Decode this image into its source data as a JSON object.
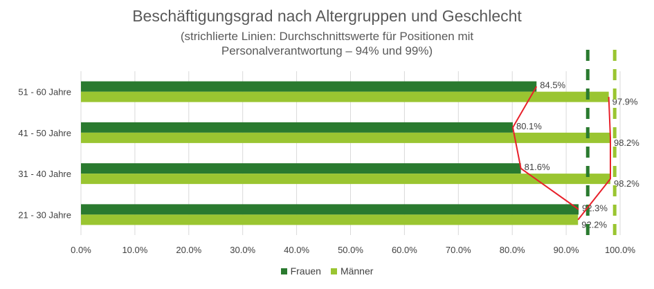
{
  "chart_data": {
    "type": "bar",
    "orientation": "horizontal",
    "title": "Beschäftigungsgrad nach Altergruppen und Geschlecht",
    "subtitle_line1": "(strichlierte Linien: Durchschnittswerte für Positionen mit",
    "subtitle_line2": "Personalverantwortung – 94% und 99%)",
    "categories": [
      "51 - 60 Jahre",
      "41 - 50 Jahre",
      "31 - 40 Jahre",
      "21 - 30 Jahre"
    ],
    "series": [
      {
        "name": "Frauen",
        "color": "#2a7a2f",
        "values": [
          84.5,
          80.1,
          81.6,
          92.3
        ],
        "labels": [
          "84.5%",
          "80.1%",
          "81.6%",
          "92.3%"
        ]
      },
      {
        "name": "Männer",
        "color": "#9ac531",
        "values": [
          97.9,
          98.2,
          98.2,
          92.2
        ],
        "labels": [
          "97.9%",
          "98.2%",
          "98.2%",
          "92.2%"
        ]
      }
    ],
    "reference_lines": [
      {
        "value": 94,
        "color": "#2a7a2f",
        "style": "dashed"
      },
      {
        "value": 99,
        "color": "#9ac531",
        "style": "dashed"
      }
    ],
    "connector_color": "#e8202a",
    "xlim": [
      0,
      100
    ],
    "x_ticks": [
      "0.0%",
      "10.0%",
      "20.0%",
      "30.0%",
      "40.0%",
      "50.0%",
      "60.0%",
      "70.0%",
      "80.0%",
      "90.0%",
      "100.0%"
    ],
    "grid": true,
    "legend_position": "bottom"
  }
}
